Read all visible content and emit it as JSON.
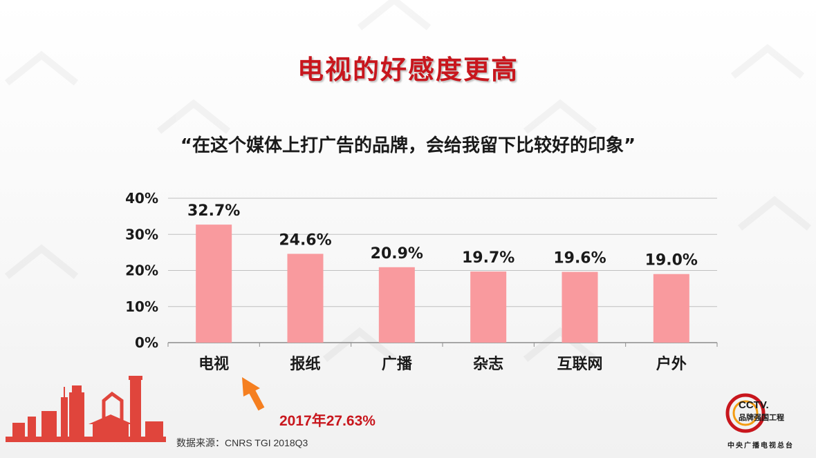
{
  "slide": {
    "title": "电视的好感度更高",
    "subtitle": "“在这个媒体上打广告的品牌，会给我留下比较好的印象”",
    "source": "数据来源：CNRS TGI 2018Q3",
    "note": "2017年27.63%"
  },
  "logo": {
    "name": "CCTV.",
    "subtitle": "品牌强国工程",
    "footer": "中央广播电视总台"
  },
  "colors": {
    "title": "#c8161d",
    "bar": "#f99a9e",
    "arrow": "#f57f20",
    "grid": "#bfbfbf"
  },
  "chart_data": {
    "type": "bar",
    "categories": [
      "电视",
      "报纸",
      "广播",
      "杂志",
      "互联网",
      "户外"
    ],
    "values": [
      32.7,
      24.6,
      20.9,
      19.7,
      19.6,
      19.0
    ],
    "value_labels": [
      "32.7%",
      "24.6%",
      "20.9%",
      "19.7%",
      "19.6%",
      "19.0%"
    ],
    "y_ticks": [
      "0%",
      "10%",
      "20%",
      "30%",
      "40%"
    ],
    "ylim": [
      0,
      40
    ],
    "grid": true
  }
}
